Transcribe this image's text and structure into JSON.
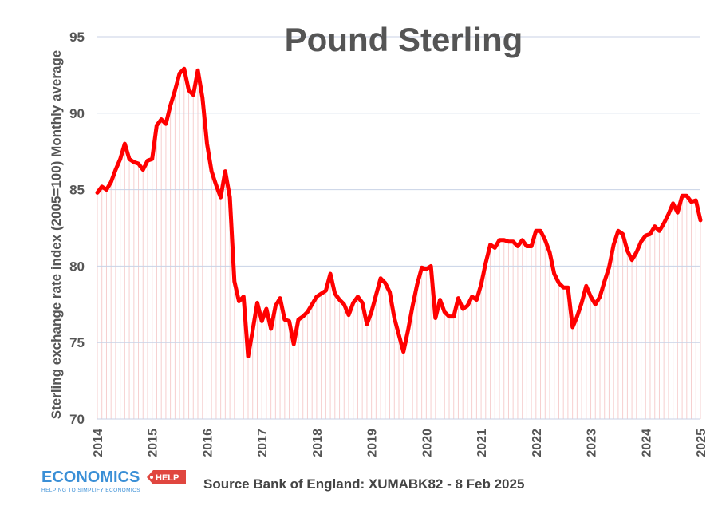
{
  "colors": {
    "line": "#ff0000",
    "grid": "#c8d2e6",
    "fill": "#f6cfcf",
    "text": "#555555",
    "logo_blue": "#3a8fd6",
    "logo_red": "#e0463f"
  },
  "logo": {
    "icon": "economics-help-logo",
    "main": "ECONOMICS",
    "badge": "HELP",
    "tagline": "HELPING TO SIMPLIFY ECONOMICS"
  },
  "source": "Source Bank of England: XUMABK82 - 8 Feb 2025",
  "chart_data": {
    "type": "line",
    "title": "Pound Sterling",
    "xlabel": "",
    "ylabel": "Sterling exchange rate index (2005=100) Monthly average",
    "ylim": [
      70,
      95
    ],
    "xlim": [
      2014,
      2025
    ],
    "yticks": [
      "70",
      "75",
      "80",
      "85",
      "90",
      "95"
    ],
    "xticks": [
      "2014",
      "2015",
      "2016",
      "2017",
      "2018",
      "2019",
      "2020",
      "2021",
      "2022",
      "2023",
      "2024",
      "2025"
    ],
    "grid": true,
    "series": [
      {
        "values": [
          [
            2014.0,
            84.8
          ],
          [
            2014.083,
            85.2
          ],
          [
            2014.167,
            85.0
          ],
          [
            2014.25,
            85.5
          ],
          [
            2014.333,
            86.3
          ],
          [
            2014.417,
            87.0
          ],
          [
            2014.5,
            88.0
          ],
          [
            2014.583,
            87.0
          ],
          [
            2014.667,
            86.8
          ],
          [
            2014.75,
            86.7
          ],
          [
            2014.833,
            86.3
          ],
          [
            2014.917,
            86.9
          ],
          [
            2015.0,
            87.0
          ],
          [
            2015.083,
            89.2
          ],
          [
            2015.167,
            89.6
          ],
          [
            2015.25,
            89.3
          ],
          [
            2015.333,
            90.5
          ],
          [
            2015.417,
            91.5
          ],
          [
            2015.5,
            92.6
          ],
          [
            2015.583,
            92.9
          ],
          [
            2015.667,
            91.5
          ],
          [
            2015.75,
            91.2
          ],
          [
            2015.833,
            92.8
          ],
          [
            2015.917,
            91.0
          ],
          [
            2016.0,
            88.0
          ],
          [
            2016.083,
            86.2
          ],
          [
            2016.167,
            85.3
          ],
          [
            2016.25,
            84.5
          ],
          [
            2016.333,
            86.2
          ],
          [
            2016.417,
            84.5
          ],
          [
            2016.5,
            79.0
          ],
          [
            2016.583,
            77.7
          ],
          [
            2016.667,
            78.0
          ],
          [
            2016.75,
            74.1
          ],
          [
            2016.833,
            75.8
          ],
          [
            2016.917,
            77.6
          ],
          [
            2017.0,
            76.4
          ],
          [
            2017.083,
            77.2
          ],
          [
            2017.167,
            75.9
          ],
          [
            2017.25,
            77.4
          ],
          [
            2017.333,
            77.9
          ],
          [
            2017.417,
            76.5
          ],
          [
            2017.5,
            76.4
          ],
          [
            2017.583,
            74.9
          ],
          [
            2017.667,
            76.5
          ],
          [
            2017.75,
            76.7
          ],
          [
            2017.833,
            77.0
          ],
          [
            2017.917,
            77.5
          ],
          [
            2018.0,
            78.0
          ],
          [
            2018.083,
            78.2
          ],
          [
            2018.167,
            78.4
          ],
          [
            2018.25,
            79.5
          ],
          [
            2018.333,
            78.2
          ],
          [
            2018.417,
            77.8
          ],
          [
            2018.5,
            77.5
          ],
          [
            2018.583,
            76.8
          ],
          [
            2018.667,
            77.6
          ],
          [
            2018.75,
            78.0
          ],
          [
            2018.833,
            77.6
          ],
          [
            2018.917,
            76.2
          ],
          [
            2019.0,
            77.0
          ],
          [
            2019.083,
            78.1
          ],
          [
            2019.167,
            79.2
          ],
          [
            2019.25,
            78.9
          ],
          [
            2019.333,
            78.3
          ],
          [
            2019.417,
            76.6
          ],
          [
            2019.5,
            75.5
          ],
          [
            2019.583,
            74.4
          ],
          [
            2019.667,
            75.8
          ],
          [
            2019.75,
            77.4
          ],
          [
            2019.833,
            78.8
          ],
          [
            2019.917,
            79.9
          ],
          [
            2020.0,
            79.8
          ],
          [
            2020.083,
            80.0
          ],
          [
            2020.167,
            76.6
          ],
          [
            2020.25,
            77.8
          ],
          [
            2020.333,
            77.0
          ],
          [
            2020.417,
            76.7
          ],
          [
            2020.5,
            76.7
          ],
          [
            2020.583,
            77.9
          ],
          [
            2020.667,
            77.2
          ],
          [
            2020.75,
            77.4
          ],
          [
            2020.833,
            78.0
          ],
          [
            2020.917,
            77.8
          ],
          [
            2021.0,
            78.8
          ],
          [
            2021.083,
            80.2
          ],
          [
            2021.167,
            81.4
          ],
          [
            2021.25,
            81.2
          ],
          [
            2021.333,
            81.7
          ],
          [
            2021.417,
            81.7
          ],
          [
            2021.5,
            81.6
          ],
          [
            2021.583,
            81.6
          ],
          [
            2021.667,
            81.3
          ],
          [
            2021.75,
            81.7
          ],
          [
            2021.833,
            81.3
          ],
          [
            2021.917,
            81.3
          ],
          [
            2022.0,
            82.3
          ],
          [
            2022.083,
            82.3
          ],
          [
            2022.167,
            81.7
          ],
          [
            2022.25,
            80.9
          ],
          [
            2022.333,
            79.5
          ],
          [
            2022.417,
            78.9
          ],
          [
            2022.5,
            78.6
          ],
          [
            2022.583,
            78.6
          ],
          [
            2022.667,
            76.0
          ],
          [
            2022.75,
            76.7
          ],
          [
            2022.833,
            77.6
          ],
          [
            2022.917,
            78.7
          ],
          [
            2023.0,
            78.0
          ],
          [
            2023.083,
            77.5
          ],
          [
            2023.167,
            78.0
          ],
          [
            2023.25,
            79.0
          ],
          [
            2023.333,
            79.9
          ],
          [
            2023.417,
            81.4
          ],
          [
            2023.5,
            82.3
          ],
          [
            2023.583,
            82.1
          ],
          [
            2023.667,
            81.0
          ],
          [
            2023.75,
            80.4
          ],
          [
            2023.833,
            80.9
          ],
          [
            2023.917,
            81.6
          ],
          [
            2024.0,
            82.0
          ],
          [
            2024.083,
            82.1
          ],
          [
            2024.167,
            82.6
          ],
          [
            2024.25,
            82.3
          ],
          [
            2024.333,
            82.8
          ],
          [
            2024.417,
            83.4
          ],
          [
            2024.5,
            84.1
          ],
          [
            2024.583,
            83.5
          ],
          [
            2024.667,
            84.6
          ],
          [
            2024.75,
            84.6
          ],
          [
            2024.833,
            84.2
          ],
          [
            2024.917,
            84.3
          ],
          [
            2025.0,
            83.0
          ]
        ]
      }
    ]
  }
}
